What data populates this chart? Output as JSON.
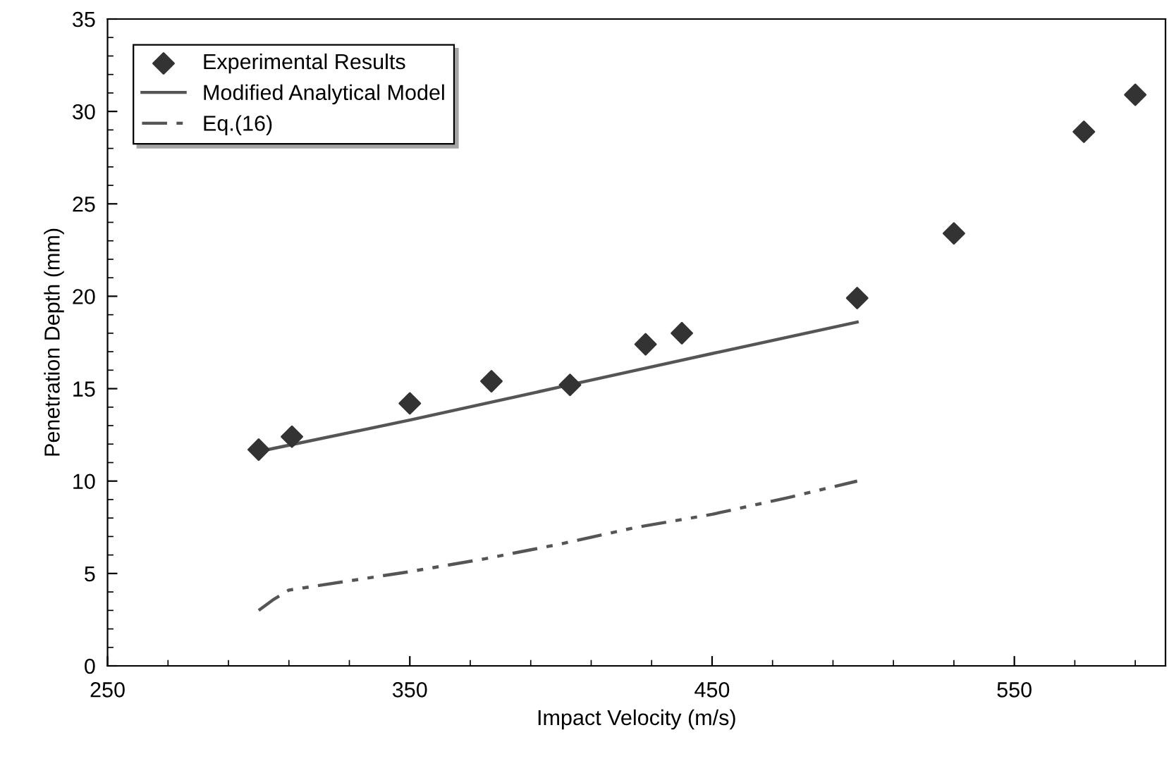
{
  "chart_data": {
    "type": "scatter",
    "xlabel": "Impact Velocity (m/s)",
    "ylabel": "Penetration Depth (mm)",
    "xlim": [
      250,
      600
    ],
    "xticks": [
      250,
      350,
      450,
      550
    ],
    "ylim": [
      0,
      35
    ],
    "yticks": [
      0,
      5,
      10,
      15,
      20,
      25,
      30,
      35
    ],
    "grid": false,
    "legend": "top left",
    "series": [
      {
        "name": "Experimental Results",
        "marker": "diamond",
        "color": "#333333",
        "x": [
          300,
          311,
          350,
          377,
          403,
          428,
          440,
          498,
          530,
          573,
          590
        ],
        "values": [
          11.7,
          12.4,
          14.2,
          15.4,
          15.2,
          17.4,
          18.0,
          19.9,
          23.4,
          28.9,
          30.9
        ]
      },
      {
        "name": "Modified Analytical Model",
        "type": "line",
        "line_style": "solid",
        "color": "#555555",
        "x": [
          300,
          350,
          400,
          450,
          498
        ],
        "values": [
          11.6,
          13.3,
          15.1,
          16.9,
          18.6
        ]
      },
      {
        "name": "Eq.(16)",
        "type": "line",
        "line_style": "dashed",
        "color": "#555555",
        "x": [
          300,
          305,
          310,
          330,
          350,
          375,
          400,
          425,
          450,
          475,
          498
        ],
        "values": [
          3.0,
          3.6,
          4.1,
          4.6,
          5.1,
          5.8,
          6.6,
          7.5,
          8.2,
          9.1,
          10.0
        ]
      }
    ]
  }
}
